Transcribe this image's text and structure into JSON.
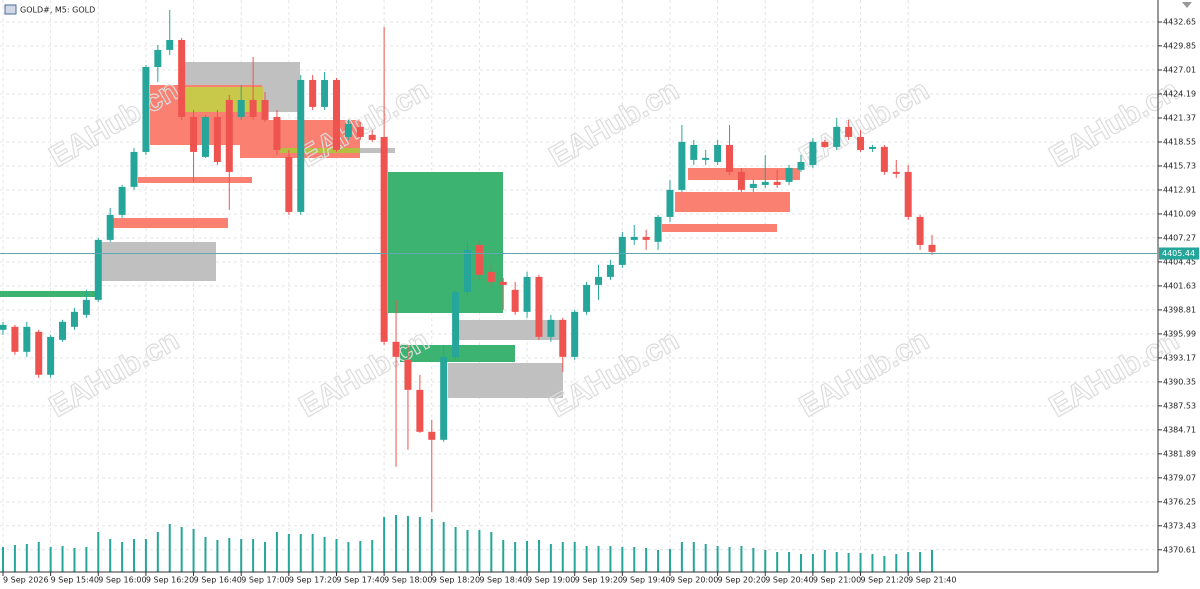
{
  "chart_data": {
    "type": "candlestick",
    "title": "GOLD#, M5: GOLD",
    "watermark": "EAHub.cn",
    "categories": [
      "9 Sep 2026",
      null,
      null,
      null,
      "9 Sep 15:40",
      null,
      null,
      null,
      "9 Sep 16:00",
      null,
      null,
      null,
      "9 Sep 16:20",
      null,
      null,
      null,
      "9 Sep 16:40",
      null,
      null,
      null,
      "9 Sep 17:00",
      null,
      null,
      null,
      "9 Sep 17:20",
      null,
      null,
      null,
      "9 Sep 17:40",
      null,
      null,
      null,
      "9 Sep 18:00",
      null,
      null,
      null,
      "9 Sep 18:20",
      null,
      null,
      null,
      "9 Sep 18:40",
      null,
      null,
      null,
      "9 Sep 19:00",
      null,
      null,
      null,
      "9 Sep 19:20",
      null,
      null,
      null,
      "9 Sep 19:40",
      null,
      null,
      null,
      "9 Sep 20:00",
      null,
      null,
      null,
      "9 Sep 20:20",
      null,
      null,
      null,
      "9 Sep 20:40",
      null,
      null,
      null,
      "9 Sep 21:00",
      null,
      null,
      null,
      "9 Sep 21:20",
      null,
      null,
      null,
      "9 Sep 21:40",
      null,
      null
    ],
    "open": [
      4396.47,
      4396.82,
      4393.88,
      4396.23,
      4391.18,
      4395.29,
      4396.82,
      4398.23,
      4399.99,
      4407.04,
      4409.98,
      4413.27,
      4417.38,
      4427.37,
      4429.37,
      4430.54,
      4421.49,
      4416.79,
      4421.49,
      4423.49,
      4421.49,
      4423.49,
      4423.49,
      4421.49,
      4416.79,
      4410.33,
      4425.84,
      4422.67,
      4425.84,
      4419.14,
      4420.32,
      4419.38,
      4419.14,
      4395.06,
      4392.94,
      4389.41,
      4384.48,
      4383.54,
      4393.29,
      4400.93,
      4406.45,
      4403.28,
      4402.1,
      4401.17,
      4398.58,
      4402.69,
      4395.64,
      4397.64,
      4393.29,
      4398.58,
      4401.75,
      4402.69,
      4404.1,
      4407.04,
      4407.39,
      4406.81,
      4409.74,
      4412.92,
      4416.44,
      4416.44,
      4416.2,
      4418.2,
      4415.03,
      4413.15,
      4413.5,
      4413.86,
      4413.86,
      4415.27,
      4415.85,
      4418.56,
      4417.97,
      4420.32,
      4419.14,
      4417.73,
      4417.97,
      4415.03,
      4415.03,
      4409.74,
      4406.45
    ],
    "high": [
      4397.41,
      4397.05,
      4397.41,
      4396.47,
      4395.88,
      4397.64,
      4399.05,
      4401.17,
      4407.27,
      4410.8,
      4413.5,
      4417.85,
      4427.6,
      4429.95,
      4434.07,
      4430.77,
      4422.31,
      4421.73,
      4422.31,
      4424.08,
      4425.25,
      4428.54,
      4424.43,
      4422.31,
      4417.61,
      4426.43,
      4426.43,
      4426.78,
      4426.07,
      4421.14,
      4420.9,
      4419.97,
      4432.07,
      4399.99,
      4394.7,
      4391.18,
      4385.89,
      4394.7,
      4401.17,
      4406.81,
      4407.04,
      4404.1,
      4402.57,
      4402.1,
      4403.28,
      4402.93,
      4398.23,
      4397.88,
      4398.82,
      4402.1,
      4404.1,
      4404.69,
      4407.98,
      4408.8,
      4408.22,
      4409.98,
      4414.09,
      4420.55,
      4418.79,
      4417.61,
      4418.79,
      4420.55,
      4415.5,
      4414.09,
      4417.03,
      4415.27,
      4415.85,
      4417.03,
      4419.03,
      4418.79,
      4421.37,
      4421.14,
      4419.97,
      4418.2,
      4418.2,
      4416.44,
      4415.85,
      4409.98,
      4407.63
    ],
    "low": [
      4395.88,
      4393.53,
      4393.29,
      4390.83,
      4390.83,
      4395.06,
      4396.47,
      4397.88,
      4399.76,
      4406.81,
      4409.63,
      4412.92,
      4417.03,
      4425.61,
      4428.78,
      4421.14,
      4413.86,
      4416.68,
      4415.85,
      4410.57,
      4421.14,
      4421.14,
      4420.9,
      4417.03,
      4409.98,
      4409.98,
      4422.31,
      4422.31,
      4417.38,
      4418.79,
      4418.79,
      4418.56,
      4394.7,
      4380.37,
      4382.37,
      4384.36,
      4375.08,
      4383.31,
      4392.94,
      4400.58,
      4402.34,
      4401.52,
      4398.82,
      4398.23,
      4397.88,
      4395.29,
      4395.06,
      4391.53,
      4392.94,
      4398.23,
      4399.99,
      4402.34,
      4403.75,
      4406.45,
      4405.87,
      4405.87,
      4409.16,
      4412.68,
      4415.85,
      4415.85,
      4415.85,
      4414.68,
      4412.68,
      4412.68,
      4413.15,
      4413.15,
      4413.5,
      4415.03,
      4415.5,
      4417.85,
      4417.61,
      4418.79,
      4417.38,
      4417.38,
      4414.68,
      4414.33,
      4409.39,
      4405.87,
      4405.28
    ],
    "close": [
      4397.05,
      4393.88,
      4396.82,
      4391.18,
      4395.64,
      4397.41,
      4398.58,
      4399.99,
      4407.04,
      4409.98,
      4413.27,
      4417.38,
      4427.37,
      4429.37,
      4430.54,
      4421.49,
      4417.38,
      4421.49,
      4416.2,
      4415.03,
      4423.49,
      4421.49,
      4421.14,
      4417.61,
      4410.33,
      4425.84,
      4422.67,
      4425.84,
      4417.61,
      4420.67,
      4419.14,
      4418.79,
      4395.06,
      4393.29,
      4389.41,
      4384.48,
      4383.54,
      4393.29,
      4400.93,
      4405.87,
      4402.93,
      4402.1,
      4401.75,
      4398.58,
      4402.69,
      4395.64,
      4397.64,
      4393.29,
      4398.58,
      4401.75,
      4402.69,
      4404.1,
      4407.39,
      4407.39,
      4407.04,
      4409.74,
      4412.92,
      4418.56,
      4418.2,
      4416.68,
      4418.2,
      4415.03,
      4412.92,
      4413.62,
      4413.86,
      4413.5,
      4415.5,
      4416.2,
      4418.56,
      4417.97,
      4420.32,
      4419.14,
      4417.61,
      4417.97,
      4415.03,
      4414.8,
      4409.74,
      4406.45,
      4405.63
    ],
    "volume": [
      25,
      27,
      28,
      30,
      25,
      26,
      24,
      25,
      40,
      33,
      30,
      33,
      33,
      40,
      48,
      45,
      43,
      35,
      32,
      34,
      33,
      33,
      30,
      40,
      38,
      38,
      38,
      35,
      33,
      30,
      31,
      32,
      55,
      57,
      56,
      55,
      53,
      50,
      45,
      42,
      42,
      40,
      32,
      30,
      31,
      32,
      28,
      30,
      30,
      26,
      26,
      26,
      25,
      25,
      24,
      22,
      23,
      30,
      30,
      28,
      26,
      25,
      26,
      24,
      22,
      20,
      20,
      18,
      18,
      22,
      20,
      19,
      19,
      18,
      16,
      18,
      20,
      20,
      22
    ],
    "up_color": "#26a69a",
    "down_color": "#ef5350",
    "current_price": 4405.44,
    "ylim": [
      4368.0,
      4435.24
    ],
    "yticks": [
      4432.65,
      4429.85,
      4427.01,
      4424.19,
      4421.37,
      4418.55,
      4415.73,
      4412.91,
      4410.09,
      4407.27,
      4404.45,
      4401.63,
      4398.81,
      4395.99,
      4393.17,
      4390.35,
      4387.53,
      4384.71,
      4381.89,
      4379.07,
      4376.25,
      4373.43,
      4370.61
    ],
    "grid": true
  }
}
